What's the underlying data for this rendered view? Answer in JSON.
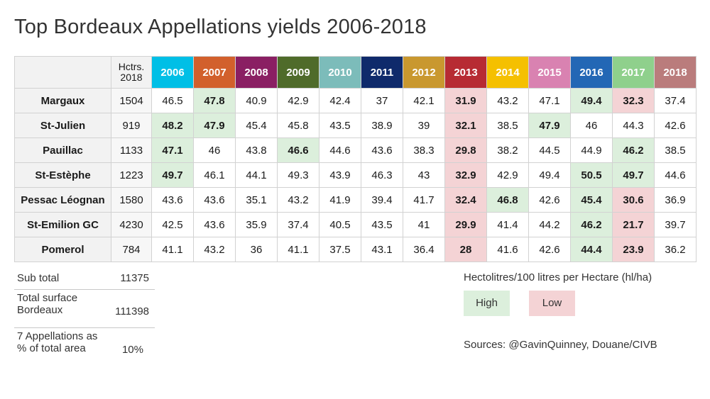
{
  "title": "Top Bordeaux Appellations yields 2006-2018",
  "header": {
    "area_label_line1": "Hctrs.",
    "area_label_line2": "2018"
  },
  "chart_data": {
    "type": "table",
    "title": "Top Bordeaux Appellations yields 2006-2018",
    "columns": [
      "2006",
      "2007",
      "2008",
      "2009",
      "2010",
      "2011",
      "2012",
      "2013",
      "2014",
      "2015",
      "2016",
      "2017",
      "2018"
    ],
    "column_colors": [
      "#00bfe6",
      "#d2602c",
      "#8a1f63",
      "#4f6b2a",
      "#7cbcba",
      "#0f2a6b",
      "#c9982f",
      "#b72b33",
      "#f5c000",
      "#d982b1",
      "#2367b5",
      "#8fd08c",
      "#ba7c7c"
    ],
    "rows": [
      {
        "name": "Margaux",
        "area": "1504",
        "values": [
          "46.5",
          "47.8",
          "40.9",
          "42.9",
          "42.4",
          "37",
          "42.1",
          "31.9",
          "43.2",
          "47.1",
          "49.4",
          "32.3",
          "37.4"
        ],
        "flags": [
          "",
          "H",
          "",
          "",
          "",
          "",
          "",
          "L",
          "",
          "",
          "H",
          "L",
          ""
        ]
      },
      {
        "name": "St-Julien",
        "area": "919",
        "values": [
          "48.2",
          "47.9",
          "45.4",
          "45.8",
          "43.5",
          "38.9",
          "39",
          "32.1",
          "38.5",
          "47.9",
          "46",
          "44.3",
          "42.6"
        ],
        "flags": [
          "H",
          "H",
          "",
          "",
          "",
          "",
          "",
          "L",
          "",
          "H",
          "",
          "",
          ""
        ]
      },
      {
        "name": "Pauillac",
        "area": "1133",
        "values": [
          "47.1",
          "46",
          "43.8",
          "46.6",
          "44.6",
          "43.6",
          "38.3",
          "29.8",
          "38.2",
          "44.5",
          "44.9",
          "46.2",
          "38.5"
        ],
        "flags": [
          "H",
          "",
          "",
          "H",
          "",
          "",
          "",
          "L",
          "",
          "",
          "",
          "H",
          ""
        ]
      },
      {
        "name": "St-Estèphe",
        "area": "1223",
        "values": [
          "49.7",
          "46.1",
          "44.1",
          "49.3",
          "43.9",
          "46.3",
          "43",
          "32.9",
          "42.9",
          "49.4",
          "50.5",
          "49.7",
          "44.6"
        ],
        "flags": [
          "H",
          "",
          "",
          "",
          "",
          "",
          "",
          "L",
          "",
          "",
          "H",
          "H",
          ""
        ]
      },
      {
        "name": "Pessac Léognan",
        "area": "1580",
        "values": [
          "43.6",
          "43.6",
          "35.1",
          "43.2",
          "41.9",
          "39.4",
          "41.7",
          "32.4",
          "46.8",
          "42.6",
          "45.4",
          "30.6",
          "36.9"
        ],
        "flags": [
          "",
          "",
          "",
          "",
          "",
          "",
          "",
          "L",
          "H",
          "",
          "H",
          "L",
          ""
        ]
      },
      {
        "name": "St-Emilion GC",
        "area": "4230",
        "values": [
          "42.5",
          "43.6",
          "35.9",
          "37.4",
          "40.5",
          "43.5",
          "41",
          "29.9",
          "41.4",
          "44.2",
          "46.2",
          "21.7",
          "39.7"
        ],
        "flags": [
          "",
          "",
          "",
          "",
          "",
          "",
          "",
          "L",
          "",
          "",
          "H",
          "L",
          ""
        ]
      },
      {
        "name": "Pomerol",
        "area": "784",
        "values": [
          "41.1",
          "43.2",
          "36",
          "41.1",
          "37.5",
          "43.1",
          "36.4",
          "28",
          "41.6",
          "42.6",
          "44.4",
          "23.9",
          "36.2"
        ],
        "flags": [
          "",
          "",
          "",
          "",
          "",
          "",
          "",
          "L",
          "",
          "",
          "H",
          "L",
          ""
        ]
      }
    ],
    "high_color": "#dcefdc",
    "low_color": "#f4d3d5",
    "unit": "Hectolitres/100 litres per Hectare (hl/ha)"
  },
  "summary": [
    {
      "label_lines": [
        "Sub total"
      ],
      "value": "11375"
    },
    {
      "label_lines": [
        "Total surface",
        "Bordeaux"
      ],
      "value": "111398"
    },
    {
      "label_lines": [
        "7 Appellations as",
        "% of total area"
      ],
      "value": "10%"
    }
  ],
  "legend": {
    "title": "Hectolitres/100 litres per Hectare (hl/ha)",
    "high_label": "High",
    "low_label": "Low"
  },
  "sources": "Sources: @GavinQuinney, Douane/CIVB"
}
